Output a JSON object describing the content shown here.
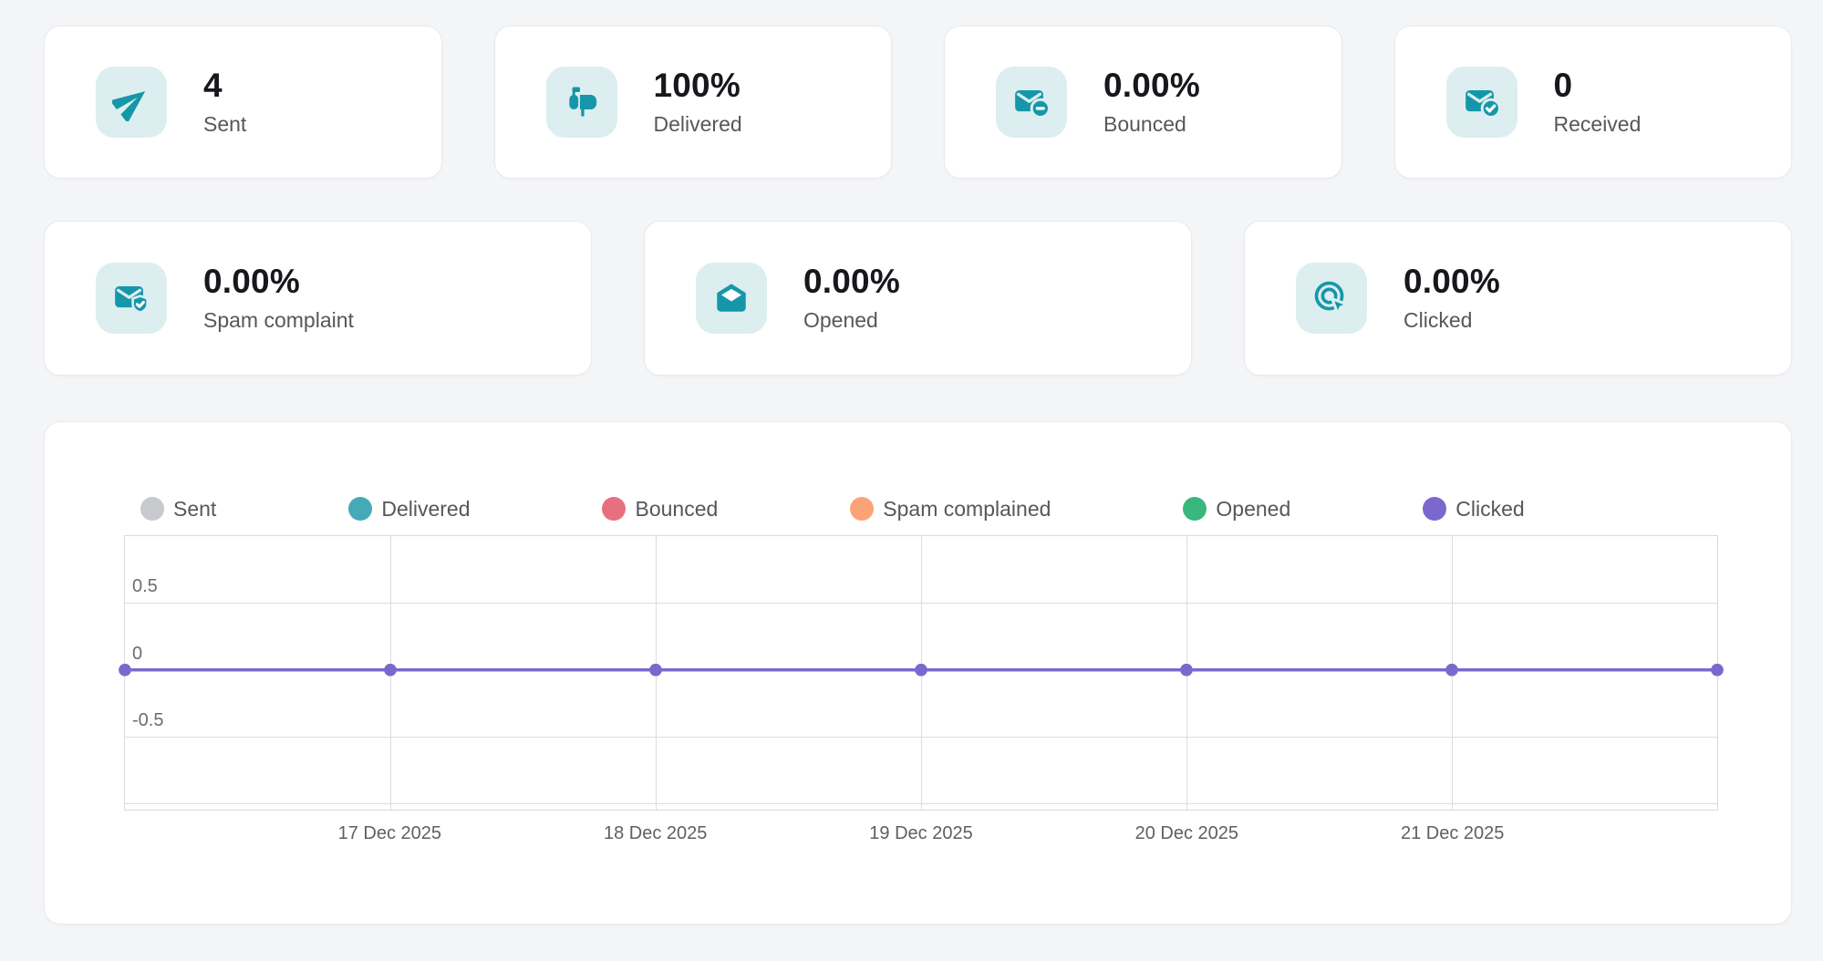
{
  "stats": {
    "row1": [
      {
        "icon": "send-icon",
        "value": "4",
        "label": "Sent"
      },
      {
        "icon": "mailbox-icon",
        "value": "100%",
        "label": "Delivered"
      },
      {
        "icon": "mail-minus-icon",
        "value": "0.00%",
        "label": "Bounced"
      },
      {
        "icon": "mail-check-icon",
        "value": "0",
        "label": "Received"
      }
    ],
    "row2": [
      {
        "icon": "mail-shield-icon",
        "value": "0.00%",
        "label": "Spam complaint"
      },
      {
        "icon": "mail-open-icon",
        "value": "0.00%",
        "label": "Opened"
      },
      {
        "icon": "click-target-icon",
        "value": "0.00%",
        "label": "Clicked"
      }
    ]
  },
  "colors": {
    "page_bg": "#f4f5f7",
    "card_bg": "#ffffff",
    "card_border": "#e9eaee",
    "icon_teal": "#1697a9",
    "icon_bg": "#dceef0",
    "grid_line": "#dcdde1",
    "value_text": "#17181c",
    "label_text": "#55575c",
    "axis_text": "#6b6d72"
  },
  "chart_data": {
    "type": "line",
    "x_labels": [
      "",
      "17 Dec 2025",
      "18 Dec 2025",
      "19 Dec 2025",
      "20 Dec 2025",
      "21 Dec 2025",
      ""
    ],
    "series": [
      {
        "name": "Sent",
        "color": "#c8c9cc",
        "values": [
          0,
          0,
          0,
          0,
          0,
          0,
          0
        ]
      },
      {
        "name": "Delivered",
        "color": "#45aab8",
        "values": [
          0,
          0,
          0,
          0,
          0,
          0,
          0
        ]
      },
      {
        "name": "Bounced",
        "color": "#e86f80",
        "values": [
          0,
          0,
          0,
          0,
          0,
          0,
          0
        ]
      },
      {
        "name": "Spam complained",
        "color": "#fba376",
        "values": [
          0,
          0,
          0,
          0,
          0,
          0,
          0
        ]
      },
      {
        "name": "Opened",
        "color": "#38b87c",
        "values": [
          0,
          0,
          0,
          0,
          0,
          0,
          0
        ]
      },
      {
        "name": "Clicked",
        "color": "#7b68cf",
        "values": [
          0,
          0,
          0,
          0,
          0,
          0,
          0
        ]
      }
    ],
    "y_ticks": [
      {
        "value": 0.5,
        "label": "0.5"
      },
      {
        "value": 0,
        "label": "0"
      },
      {
        "value": -0.5,
        "label": "-0.5"
      }
    ],
    "y_gridlines": [
      1,
      0.5,
      0,
      -0.5,
      -1
    ],
    "ylim": [
      -1.045,
      1
    ],
    "grid": true,
    "legend_position": "top"
  }
}
